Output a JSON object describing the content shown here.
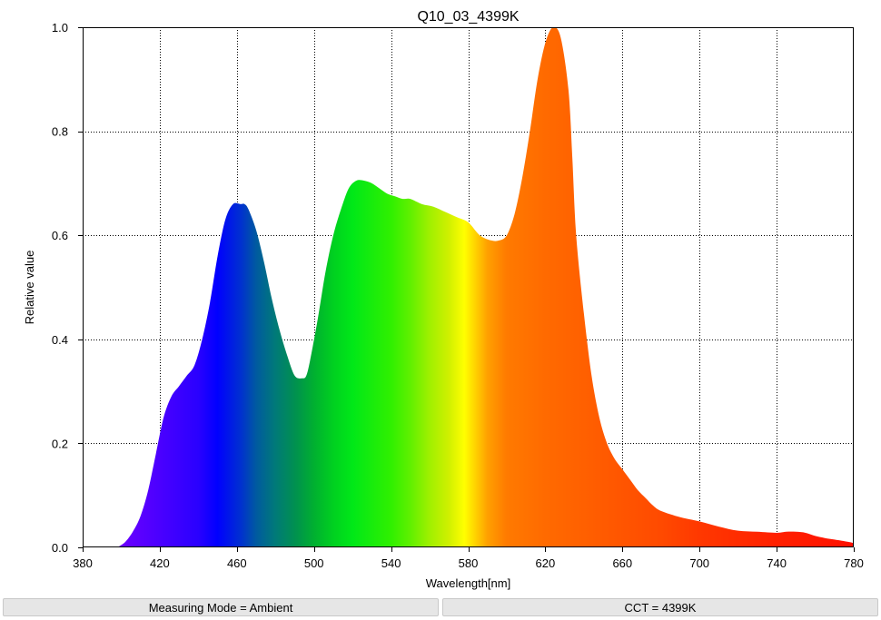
{
  "chart_data": {
    "type": "area",
    "title": "Q10_03_4399K",
    "xlabel": "Wavelength[nm]",
    "ylabel": "Relative value",
    "xlim": [
      380,
      780
    ],
    "ylim": [
      0,
      1.0
    ],
    "xticks": [
      "380",
      "420",
      "460",
      "500",
      "540",
      "580",
      "620",
      "660",
      "700",
      "740",
      "780"
    ],
    "yticks": [
      "0.0",
      "0.2",
      "0.4",
      "0.6",
      "0.8",
      "1.0"
    ],
    "grid": true,
    "fill": "wavelength-colored spectrum",
    "x": [
      398,
      402,
      406,
      410,
      414,
      418,
      422,
      426,
      430,
      434,
      438,
      442,
      446,
      450,
      454,
      458,
      462,
      464,
      466,
      470,
      474,
      478,
      482,
      486,
      490,
      494,
      496,
      498,
      502,
      506,
      510,
      514,
      518,
      522,
      526,
      530,
      534,
      538,
      542,
      546,
      550,
      556,
      562,
      568,
      574,
      580,
      586,
      592,
      596,
      600,
      604,
      608,
      612,
      616,
      620,
      624,
      628,
      632,
      634,
      636,
      640,
      644,
      648,
      652,
      656,
      660,
      664,
      668,
      672,
      676,
      680,
      690,
      700,
      710,
      720,
      730,
      740,
      745,
      750,
      755,
      760,
      765,
      770,
      775,
      778,
      780
    ],
    "y": [
      0.0,
      0.01,
      0.03,
      0.06,
      0.11,
      0.18,
      0.25,
      0.29,
      0.31,
      0.33,
      0.35,
      0.4,
      0.47,
      0.56,
      0.63,
      0.66,
      0.66,
      0.66,
      0.65,
      0.61,
      0.55,
      0.48,
      0.42,
      0.37,
      0.33,
      0.325,
      0.33,
      0.36,
      0.44,
      0.53,
      0.6,
      0.65,
      0.69,
      0.705,
      0.705,
      0.7,
      0.69,
      0.68,
      0.675,
      0.67,
      0.67,
      0.66,
      0.655,
      0.645,
      0.635,
      0.625,
      0.6,
      0.59,
      0.59,
      0.6,
      0.64,
      0.71,
      0.8,
      0.9,
      0.97,
      1.0,
      0.98,
      0.88,
      0.75,
      0.6,
      0.45,
      0.33,
      0.25,
      0.2,
      0.17,
      0.15,
      0.13,
      0.11,
      0.095,
      0.08,
      0.07,
      0.058,
      0.05,
      0.04,
      0.032,
      0.03,
      0.028,
      0.03,
      0.03,
      0.028,
      0.022,
      0.018,
      0.015,
      0.012,
      0.01,
      0.008
    ]
  },
  "status": {
    "left": "Measuring Mode = Ambient",
    "right": "CCT = 4399K"
  }
}
